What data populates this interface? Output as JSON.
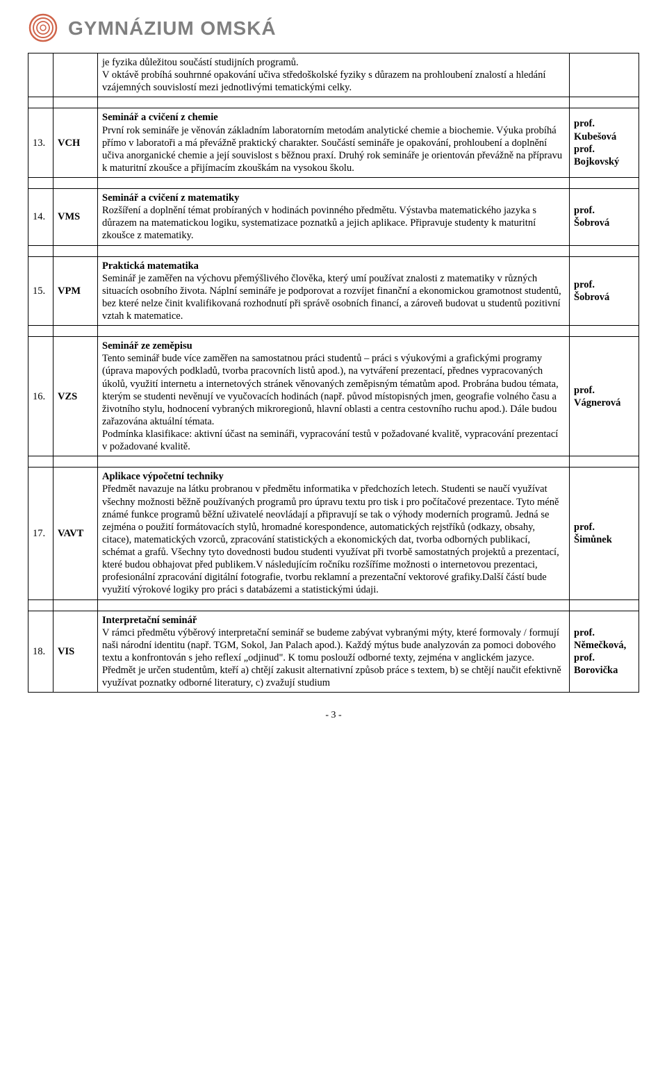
{
  "header": {
    "logo_stroke": "#d0644a",
    "title": "GYMNÁZIUM OMSKÁ",
    "title_color": "#808080"
  },
  "intro": {
    "text": "je fyzika důležitou součástí studijních programů.\nV oktávě probíhá souhrnné opakování učiva středoškolské fyziky s důrazem na prohloubení znalostí a hledání vzájemných souvislostí mezi jednotlivými tematickými celky."
  },
  "rows": [
    {
      "idx": "13.",
      "code": "VCH",
      "title": "Seminář a cvičení z chemie",
      "body": "První rok semináře je věnován základním laboratorním metodám analytické chemie a biochemie. Výuka probíhá přímo v laboratoři a má převážně praktický charakter. Součástí semináře je opakování, prohloubení a doplnění učiva anorganické chemie a její souvislost s běžnou praxí. Druhý rok semináře je orientován převážně na přípravu k maturitní zkoušce a přijímacím zkouškám na vysokou školu.",
      "teacher": "prof.\nKubešová\nprof.\nBojkovský"
    },
    {
      "idx": "14.",
      "code": "VMS",
      "title": "Seminář a cvičení z matematiky",
      "body": "Rozšíření a doplnění témat probíraných v hodinách povinného předmětu. Výstavba matematického jazyka s důrazem na matematickou logiku, systematizace poznatků a jejich aplikace. Připravuje studenty k maturitní zkoušce z matematiky.",
      "teacher": "prof.\nŠobrová"
    },
    {
      "idx": "15.",
      "code": "VPM",
      "title": "Praktická matematika",
      "body": "Seminář je zaměřen na výchovu přemýšlivého člověka, který umí používat znalosti z matematiky v různých situacích osobního života. Náplní semináře je podporovat a rozvíjet finanční a ekonomickou gramotnost studentů, bez které nelze činit kvalifikovaná rozhodnutí při správě osobních financí, a zároveň budovat u studentů pozitivní vztah k matematice.",
      "teacher": "prof.\nŠobrová"
    },
    {
      "idx": "16.",
      "code": "VZS",
      "title": "Seminář ze zeměpisu",
      "body": "Tento seminář bude více zaměřen na samostatnou práci studentů – práci s výukovými a grafickými programy (úprava mapových podkladů, tvorba pracovních listů apod.), na vytváření prezentací, přednes vypracovaných úkolů, využití internetu a internetových stránek věnovaných zeměpisným tématům apod. Probrána budou témata, kterým se studenti nevěnují ve vyučovacích hodinách (např. původ místopisných jmen, geografie volného času a životního stylu, hodnocení vybraných mikroregionů, hlavní oblasti a centra cestovního ruchu apod.). Dále budou zařazována aktuální témata.\nPodmínka klasifikace: aktivní účast na semináři, vypracování testů v požadované kvalitě, vypracování prezentací v požadované kvalitě.",
      "teacher": "prof.\nVágnerová"
    },
    {
      "idx": "17.",
      "code": "VAVT",
      "title": "Aplikace výpočetní techniky",
      "body": "Předmět navazuje na látku probranou v předmětu informatika v předchozích letech. Studenti se naučí využívat všechny možnosti běžně používaných programů pro úpravu textu pro tisk i pro počítačové prezentace. Tyto méně známé funkce programů běžní uživatelé neovládají a připravují se tak o výhody moderních programů. Jedná se zejména o použití formátovacích stylů, hromadné korespondence, automatických rejstříků (odkazy, obsahy, citace), matematických vzorců, zpracování statistických a ekonomických dat, tvorba odborných publikací, schémat a grafů. Všechny tyto dovednosti budou studenti využívat při tvorbě samostatných projektů a prezentací, které budou obhajovat před publikem.V následujícím ročníku rozšíříme možnosti o internetovou prezentaci, profesionální zpracování digitální fotografie, tvorbu reklamní a prezentační vektorové grafiky.Další částí bude využití výrokové logiky pro práci s databázemi a statistickými údaji.",
      "teacher": "prof.\nŠimůnek"
    },
    {
      "idx": "18.",
      "code": "VIS",
      "title": "Interpretační seminář",
      "body": "V rámci předmětu výběrový interpretační seminář se budeme zabývat vybranými mýty, které formovaly / formují naši národní identitu (např. TGM, Sokol, Jan Palach apod.). Každý mýtus bude analyzován za pomoci dobového textu a konfrontován s jeho reflexí „odjinud\". K tomu poslouží odborné texty, zejména v anglickém jazyce. Předmět je určen studentům, kteří a) chtějí zakusit alternativní způsob práce s textem, b) se chtějí naučit efektivně využívat poznatky odborné literatury, c) zvažují studium",
      "teacher": "prof.\nNěmečková,\nprof.\nBorovička"
    }
  ],
  "footer": {
    "page": "- 3 -"
  }
}
